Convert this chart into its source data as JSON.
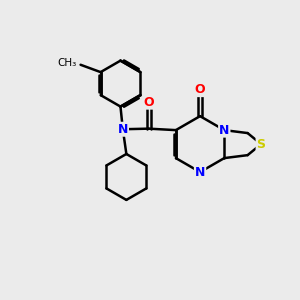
{
  "background_color": "#ebebeb",
  "bond_color": "#000000",
  "atom_colors": {
    "N": "#0000ff",
    "O": "#ff0000",
    "S": "#cccc00"
  },
  "bond_width": 1.8,
  "figsize": [
    3.0,
    3.0
  ],
  "dpi": 100
}
